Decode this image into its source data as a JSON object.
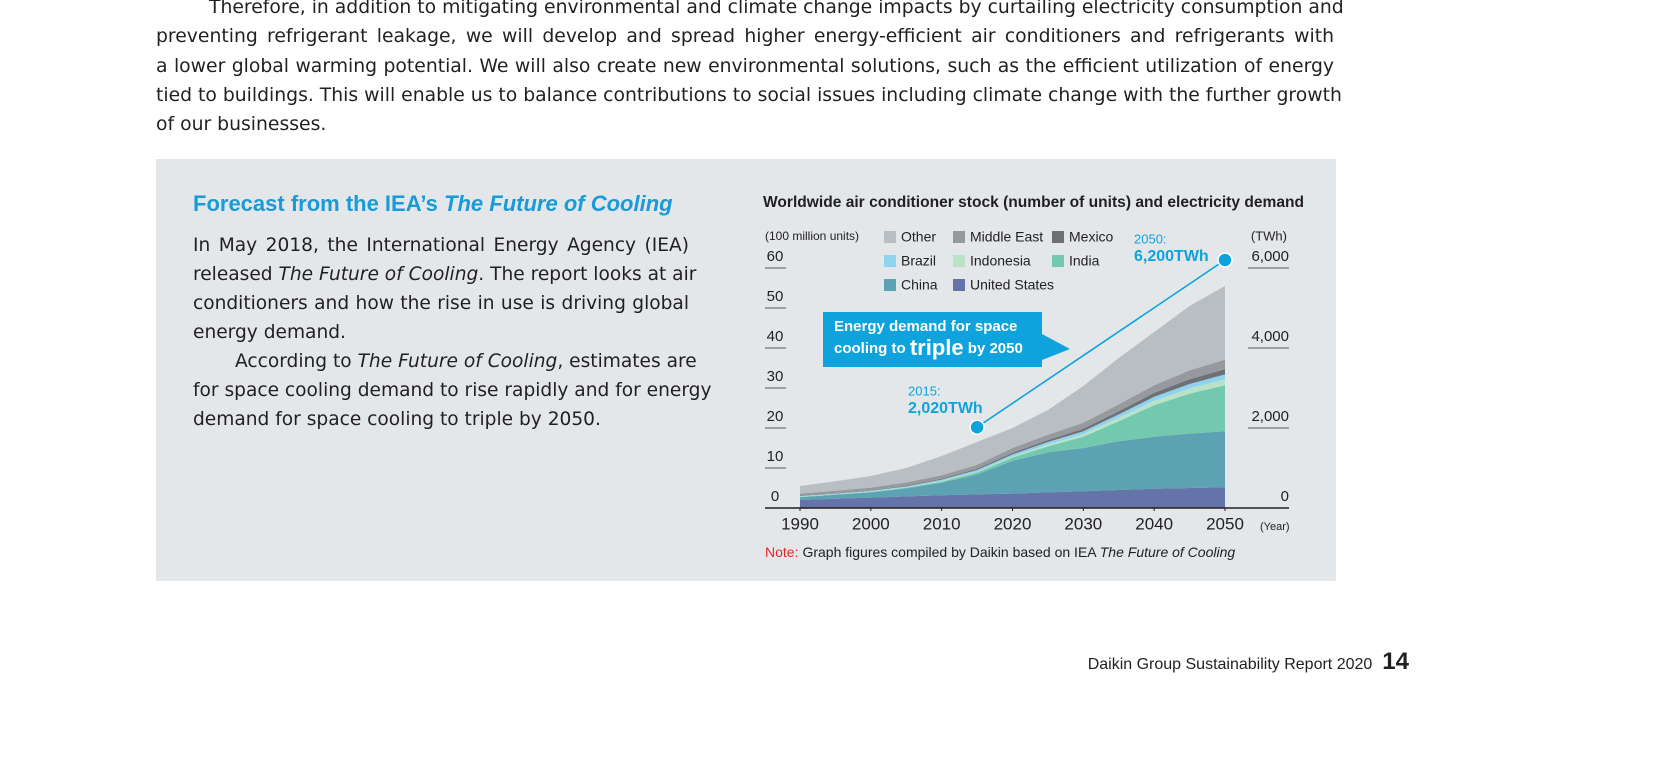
{
  "intro": {
    "lines": [
      "Therefore, in addition to mitigating environmental and climate change impacts by curtailing electricity consumption and",
      "preventing refrigerant leakage, we will develop and spread higher energy-efficient air conditioners and refrigerants with",
      "a lower global warming potential. We will also create new environmental solutions, such as the efficient utilization of energy",
      "tied to buildings. This will enable us to balance contributions to social issues including climate change with the further growth",
      "of our businesses."
    ]
  },
  "sidebar": {
    "heading": [
      "Forecast from the IEA’s ",
      "The Future of Cooling"
    ],
    "lines": [
      [
        "In May 2018, the International Energy Agency (IEA)"
      ],
      [
        "released ",
        "The Future of Cooling",
        ". The report looks at air"
      ],
      [
        "conditioners and how the rise in use is driving global"
      ],
      [
        "energy demand."
      ],
      [
        "According to ",
        "The Future of Cooling",
        ", estimates are"
      ],
      [
        "for space cooling demand to rise rapidly and for energy"
      ],
      [
        "demand for space cooling to triple by 2050."
      ]
    ]
  },
  "chart_data": {
    "type": "stacked_area",
    "title": "Worldwide air conditioner stock (number of units) and electricity demand",
    "y_label": "(100 million units)",
    "y2_label": "(TWh)",
    "x_label": "(Year)",
    "x": [
      1990,
      1995,
      2000,
      2005,
      2010,
      2015,
      2020,
      2025,
      2030,
      2035,
      2040,
      2045,
      2050
    ],
    "xlim": [
      1990,
      2050
    ],
    "xticks": [
      1990,
      2000,
      2010,
      2020,
      2030,
      2040,
      2050
    ],
    "ylim": [
      0,
      60
    ],
    "yticks": [
      0,
      10,
      20,
      30,
      40,
      50,
      60
    ],
    "y2lim": [
      0,
      6000
    ],
    "y2ticks": [
      0,
      {
        "value": 2000,
        "label": "2,000"
      },
      {
        "value": 4000,
        "label": "4,000"
      },
      {
        "value": 6000,
        "label": "6,000"
      }
    ],
    "series": [
      {
        "name": "United States",
        "color": "#6574a8",
        "values": [
          2,
          2.3,
          2.6,
          2.9,
          3.2,
          3.4,
          3.6,
          3.9,
          4.2,
          4.5,
          4.8,
          5.0,
          5.2
        ]
      },
      {
        "name": "China",
        "color": "#5ca2b3",
        "values": [
          0.7,
          1.0,
          1.3,
          2.0,
          3.1,
          5.0,
          8.2,
          10.0,
          10.8,
          12.2,
          13.0,
          13.6,
          14.0
        ]
      },
      {
        "name": "India",
        "color": "#73c9ae",
        "values": [
          0.1,
          0.1,
          0.1,
          0.2,
          0.3,
          0.5,
          0.8,
          1.5,
          2.8,
          5.0,
          7.9,
          10.0,
          11.5
        ]
      },
      {
        "name": "Indonesia",
        "color": "#b9e2c9",
        "values": [
          0.1,
          0.1,
          0.1,
          0.1,
          0.2,
          0.2,
          0.3,
          0.5,
          0.7,
          0.9,
          1.1,
          1.3,
          1.5
        ]
      },
      {
        "name": "Brazil",
        "color": "#8fd3ef",
        "values": [
          0.1,
          0.1,
          0.2,
          0.2,
          0.3,
          0.4,
          0.5,
          0.6,
          0.7,
          0.8,
          1.0,
          1.1,
          1.2
        ]
      },
      {
        "name": "Mexico",
        "color": "#6d7075",
        "values": [
          0.1,
          0.1,
          0.1,
          0.2,
          0.2,
          0.3,
          0.4,
          0.5,
          0.6,
          0.8,
          1.0,
          1.2,
          1.3
        ]
      },
      {
        "name": "Middle East",
        "color": "#96999d",
        "values": [
          0.5,
          0.6,
          0.7,
          0.8,
          0.9,
          1.0,
          1.2,
          1.3,
          1.5,
          1.7,
          1.9,
          2.2,
          2.4
        ]
      },
      {
        "name": "Other",
        "color": "#b8bec2",
        "values": [
          1.9,
          2.4,
          2.9,
          3.6,
          4.8,
          5.7,
          5.0,
          6.2,
          9.2,
          11.6,
          13.3,
          16.1,
          18.4
        ]
      }
    ],
    "annotations": [
      {
        "label": "2015:",
        "x": 2015,
        "value": 2020,
        "value_label": "2,020TWh",
        "axis": "y2"
      },
      {
        "label": "2050:",
        "x": 2050,
        "value": 6200,
        "value_label": "6,200TWh",
        "axis": "y2"
      }
    ],
    "callout": [
      "Energy demand for space",
      "cooling to ",
      "triple",
      " by 2050"
    ],
    "note": [
      "Note:",
      "Graph figures compiled by Daikin based on IEA ",
      "The Future of Cooling"
    ]
  },
  "footer": {
    "report": "Daikin Group Sustainability Report 2020",
    "page": "14"
  }
}
